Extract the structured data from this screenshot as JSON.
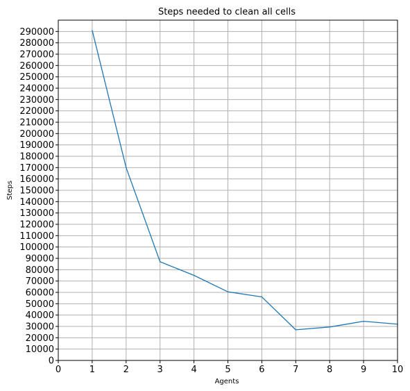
{
  "chart_data": {
    "type": "line",
    "title": "Steps needed to clean all cells",
    "xlabel": "Agents",
    "ylabel": "Steps",
    "xlim": [
      0,
      10
    ],
    "ylim": [
      0,
      300000
    ],
    "xticks": [
      0,
      1,
      2,
      3,
      4,
      5,
      6,
      7,
      8,
      9,
      10
    ],
    "yticks": [
      0,
      10000,
      20000,
      30000,
      40000,
      50000,
      60000,
      70000,
      80000,
      90000,
      100000,
      110000,
      120000,
      130000,
      140000,
      150000,
      160000,
      170000,
      180000,
      190000,
      200000,
      210000,
      220000,
      230000,
      240000,
      250000,
      260000,
      270000,
      280000,
      290000
    ],
    "grid": true,
    "line_color": "#1f77b4",
    "grid_color": "#b0b0b0",
    "series": [
      {
        "x": [
          1,
          2,
          3,
          4,
          5,
          6,
          7,
          8,
          9,
          10
        ],
        "values": [
          291000,
          170000,
          87000,
          75000,
          60500,
          56000,
          27000,
          29500,
          34500,
          32000
        ]
      }
    ]
  }
}
